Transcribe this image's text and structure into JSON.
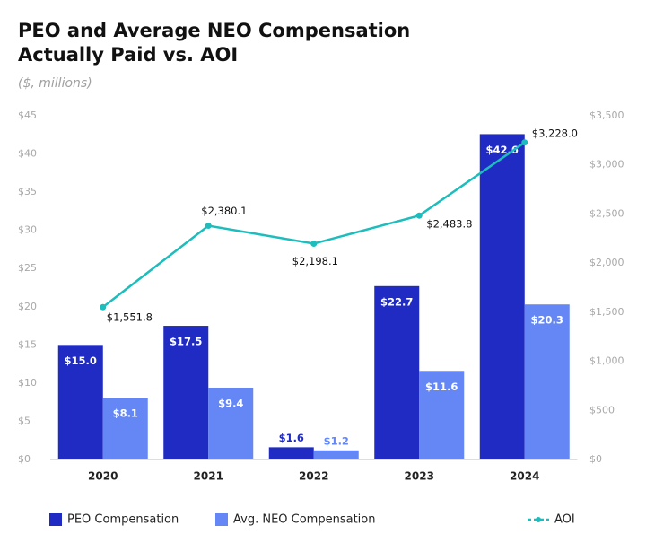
{
  "chart_data": {
    "type": "bar",
    "title": [
      "PEO and Average NEO Compensation",
      "Actually Paid vs. AOI"
    ],
    "subtitle": "($, millions)",
    "categories": [
      "2020",
      "2021",
      "2022",
      "2023",
      "2024"
    ],
    "series": [
      {
        "name": "PEO Compensation",
        "color": "#1f2bc2",
        "values": [
          15.0,
          17.5,
          1.6,
          22.7,
          42.6
        ],
        "value_labels": [
          "$15.0",
          "$17.5",
          "$1.6",
          "$22.7",
          "$42.6"
        ]
      },
      {
        "name": "Avg. NEO Compensation",
        "color": "#6487f5",
        "values": [
          8.1,
          9.4,
          1.2,
          11.6,
          20.3
        ],
        "value_labels": [
          "$8.1",
          "$9.4",
          "$1.2",
          "$11.6",
          "$20.3"
        ]
      },
      {
        "name": "AOI",
        "type": "line",
        "axis": "y2",
        "color": "#1dbdbd",
        "values": [
          1551.8,
          2380.1,
          2198.1,
          2483.8,
          3228.0
        ],
        "value_labels": [
          "$1,551.8",
          "$2,380.1",
          "$2,198.1",
          "$2,483.8",
          "$3,228.0"
        ]
      }
    ],
    "ylim": [
      0,
      45
    ],
    "yticks": [
      {
        "value": 0,
        "label": "$0"
      },
      {
        "value": 5,
        "label": "$5"
      },
      {
        "value": 10,
        "label": "$10"
      },
      {
        "value": 15,
        "label": "$15"
      },
      {
        "value": 20,
        "label": "$20"
      },
      {
        "value": 25,
        "label": "$25"
      },
      {
        "value": 30,
        "label": "$30"
      },
      {
        "value": 35,
        "label": "$35"
      },
      {
        "value": 40,
        "label": "$40"
      },
      {
        "value": 45,
        "label": "$45"
      }
    ],
    "y2lim": [
      0,
      3500
    ],
    "y2ticks": [
      {
        "value": 0,
        "label": "$0"
      },
      {
        "value": 500,
        "label": "$500"
      },
      {
        "value": 1000,
        "label": "$1,000"
      },
      {
        "value": 1500,
        "label": "$1,500"
      },
      {
        "value": 2000,
        "label": "$2,000"
      },
      {
        "value": 2500,
        "label": "$2,500"
      },
      {
        "value": 3000,
        "label": "$3,000"
      },
      {
        "value": 3500,
        "label": "$3,500"
      }
    ],
    "grid": false
  }
}
